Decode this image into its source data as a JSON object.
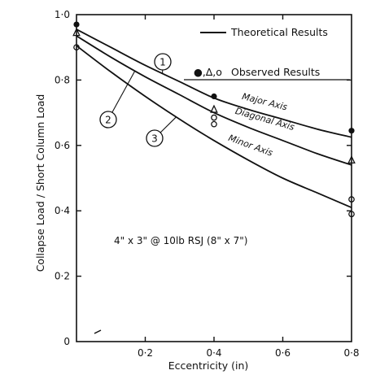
{
  "chart_data": {
    "type": "line",
    "xlabel": "Eccentricity (in)",
    "ylabel": "Collapse Load / Short Column Load",
    "xlim": [
      0,
      0.8
    ],
    "ylim": [
      0,
      1.0
    ],
    "x_ticks": [
      "0·2",
      "0·4",
      "0·6",
      "0·8"
    ],
    "y_ticks": [
      "0",
      "0·2",
      "0·4",
      "0·6",
      "0·8",
      "1·0"
    ],
    "legend": {
      "placement": "top-right",
      "line_label": "Theoretical Results",
      "marker_symbols": "●,∆,o",
      "marker_label": "Observed Results"
    },
    "annotation": "4\" x 3\" @ 10lb RSJ (8\" x 7\")",
    "series": [
      {
        "name": "Major Axis",
        "callout": "1",
        "marker": "filled-circle",
        "theory": {
          "x": [
            0,
            0.1,
            0.2,
            0.3,
            0.4,
            0.5,
            0.6,
            0.7,
            0.8
          ],
          "y": [
            0.955,
            0.9,
            0.845,
            0.795,
            0.745,
            0.71,
            0.68,
            0.65,
            0.625
          ]
        },
        "observed": {
          "x": [
            0,
            0.4,
            0.8
          ],
          "y": [
            0.97,
            0.75,
            0.645
          ]
        }
      },
      {
        "name": "Diagonal Axis",
        "callout": "2",
        "marker": "triangle",
        "theory": {
          "x": [
            0,
            0.1,
            0.2,
            0.3,
            0.4,
            0.5,
            0.6,
            0.7,
            0.8
          ],
          "y": [
            0.935,
            0.87,
            0.81,
            0.755,
            0.7,
            0.655,
            0.615,
            0.575,
            0.54
          ]
        },
        "observed": {
          "x": [
            0,
            0.4,
            0.8
          ],
          "y": [
            0.945,
            0.71,
            0.555
          ]
        }
      },
      {
        "name": "Minor Axis",
        "callout": "3",
        "marker": "open-circle",
        "theory": {
          "x": [
            0,
            0.1,
            0.2,
            0.3,
            0.4,
            0.5,
            0.6,
            0.7,
            0.8
          ],
          "y": [
            0.905,
            0.825,
            0.75,
            0.68,
            0.615,
            0.555,
            0.5,
            0.455,
            0.41
          ]
        },
        "observed": {
          "x": [
            0,
            0.4,
            0.4,
            0.8,
            0.8
          ],
          "y": [
            0.9,
            0.685,
            0.665,
            0.435,
            0.39
          ]
        }
      }
    ]
  }
}
